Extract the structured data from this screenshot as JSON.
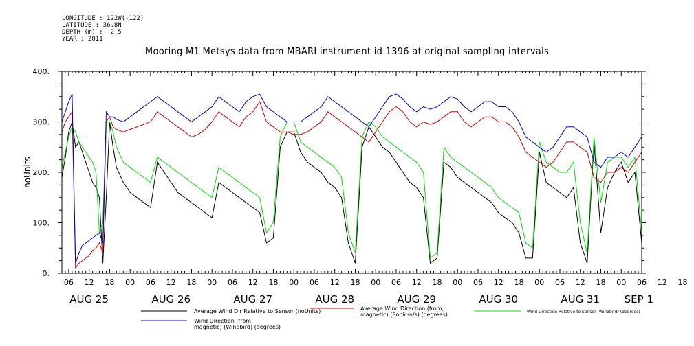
{
  "header": {
    "meta_lines": [
      "LONGITUDE : 122W(-122)",
      "LATITUDE : 36.8N",
      "DEPTH (m) : -2.5",
      "YEAR : 2011"
    ],
    "title": "Mooring M1 Metsys data from MBARI instrument id 1396 at original sampling intervals"
  },
  "chart_data": {
    "type": "line",
    "title": "Mooring M1 Metsys data from MBARI instrument id 1396 at original sampling intervals",
    "ylabel": "noUnits",
    "xlabel": "",
    "ylim": [
      0,
      400
    ],
    "yticks": [
      0,
      100,
      200,
      300,
      400
    ],
    "ytick_labels": [
      "0.",
      "100.",
      "200.",
      "300.",
      "400."
    ],
    "xlim_hours": [
      4,
      174
    ],
    "hour_tick_labels": [
      "06",
      "12",
      "18",
      "00",
      "06",
      "12",
      "18",
      "00",
      "06",
      "12",
      "18",
      "00",
      "06",
      "12",
      "18",
      "00",
      "06",
      "12",
      "18",
      "00",
      "06",
      "12",
      "18",
      "00",
      "06",
      "12",
      "18",
      "00",
      "06",
      "12",
      "18",
      "00"
    ],
    "day_labels": [
      "AUG 25",
      "AUG 26",
      "AUG 27",
      "AUG 28",
      "AUG 29",
      "AUG 30",
      "AUG 31",
      "SEP  1"
    ],
    "grid": false,
    "series": [
      {
        "name": "Average Wind Dir Relative to Sensor (noUnits)",
        "color": "#000000",
        "x": [
          4,
          5,
          6,
          7,
          8,
          9,
          10,
          11,
          12,
          13,
          14,
          15,
          16,
          17,
          18,
          19,
          20,
          22,
          24,
          26,
          28,
          30,
          32,
          34,
          36,
          38,
          40,
          42,
          44,
          46,
          48,
          50,
          52,
          54,
          56,
          58,
          60,
          62,
          64,
          66,
          68,
          70,
          72,
          74,
          76,
          78,
          80,
          82,
          84,
          86,
          88,
          90,
          92,
          94,
          96,
          98,
          100,
          102,
          104,
          106,
          108,
          110,
          112,
          114,
          116,
          118,
          120,
          122,
          124,
          126,
          128,
          130,
          132,
          134,
          136,
          138,
          140,
          142,
          144,
          146,
          148,
          150,
          152,
          154,
          156,
          158,
          160,
          162,
          164,
          166,
          168,
          170,
          172,
          174
        ],
        "values": [
          190,
          230,
          280,
          300,
          250,
          260,
          240,
          220,
          200,
          180,
          170,
          150,
          20,
          150,
          300,
          250,
          210,
          180,
          160,
          150,
          140,
          130,
          220,
          200,
          180,
          160,
          150,
          140,
          130,
          120,
          110,
          180,
          170,
          160,
          150,
          140,
          130,
          120,
          60,
          70,
          250,
          280,
          280,
          240,
          220,
          210,
          200,
          180,
          170,
          150,
          60,
          20,
          250,
          290,
          270,
          250,
          240,
          220,
          200,
          180,
          170,
          150,
          20,
          30,
          220,
          210,
          190,
          180,
          170,
          160,
          150,
          140,
          120,
          110,
          100,
          80,
          30,
          30,
          240,
          180,
          170,
          160,
          150,
          170,
          60,
          20,
          260,
          80,
          170,
          200,
          220,
          180,
          200,
          60
        ]
      },
      {
        "name": "Average Wind Direction (from, magnetic) (Sonic-n/s) (degrees)",
        "color": "#cc0000",
        "x": [
          4,
          5,
          6,
          7,
          8,
          9,
          10,
          11,
          12,
          13,
          14,
          15,
          16,
          17,
          18,
          19,
          20,
          22,
          24,
          26,
          28,
          30,
          32,
          34,
          36,
          38,
          40,
          42,
          44,
          46,
          48,
          50,
          52,
          54,
          56,
          58,
          60,
          62,
          64,
          66,
          68,
          70,
          72,
          74,
          76,
          78,
          80,
          82,
          84,
          86,
          88,
          90,
          92,
          94,
          96,
          98,
          100,
          102,
          104,
          106,
          108,
          110,
          112,
          114,
          116,
          118,
          120,
          122,
          124,
          126,
          128,
          130,
          132,
          134,
          136,
          138,
          140,
          142,
          144,
          146,
          148,
          150,
          152,
          154,
          156,
          158,
          160,
          162,
          164,
          166,
          168,
          170,
          172,
          174
        ],
        "values": [
          280,
          300,
          310,
          320,
          10,
          20,
          25,
          30,
          35,
          45,
          50,
          60,
          40,
          300,
          310,
          290,
          285,
          280,
          285,
          290,
          295,
          300,
          320,
          310,
          300,
          290,
          280,
          270,
          275,
          285,
          300,
          320,
          310,
          300,
          290,
          310,
          320,
          340,
          300,
          290,
          280,
          280,
          275,
          275,
          280,
          290,
          300,
          320,
          310,
          300,
          290,
          280,
          270,
          260,
          280,
          300,
          320,
          330,
          320,
          300,
          290,
          300,
          295,
          300,
          310,
          320,
          320,
          300,
          290,
          300,
          310,
          310,
          300,
          300,
          290,
          270,
          240,
          230,
          220,
          210,
          220,
          240,
          260,
          260,
          250,
          240,
          190,
          180,
          200,
          200,
          210,
          200,
          220,
          240
        ]
      },
      {
        "name": "Wind Direction Relative to Sensor (Windbird) (degrees)",
        "color": "#00dd00",
        "x": [
          4,
          5,
          6,
          7,
          8,
          9,
          10,
          11,
          12,
          13,
          14,
          15,
          16,
          17,
          18,
          19,
          20,
          22,
          24,
          26,
          28,
          30,
          32,
          34,
          36,
          38,
          40,
          42,
          44,
          46,
          48,
          50,
          52,
          54,
          56,
          58,
          60,
          62,
          64,
          66,
          68,
          70,
          72,
          74,
          76,
          78,
          80,
          82,
          84,
          86,
          88,
          90,
          92,
          94,
          96,
          98,
          100,
          102,
          104,
          106,
          108,
          110,
          112,
          114,
          116,
          118,
          120,
          122,
          124,
          126,
          128,
          130,
          132,
          134,
          136,
          138,
          140,
          142,
          144,
          146,
          148,
          150,
          152,
          154,
          156,
          158,
          160,
          162,
          164,
          166,
          168,
          170,
          172,
          174
        ],
        "values": [
          210,
          240,
          270,
          290,
          280,
          260,
          250,
          240,
          230,
          220,
          200,
          80,
          100,
          300,
          300,
          280,
          250,
          220,
          210,
          200,
          190,
          180,
          230,
          220,
          210,
          200,
          190,
          180,
          170,
          160,
          150,
          210,
          200,
          190,
          180,
          170,
          160,
          150,
          80,
          100,
          270,
          300,
          300,
          260,
          250,
          240,
          230,
          220,
          210,
          190,
          80,
          40,
          270,
          300,
          290,
          270,
          260,
          250,
          240,
          230,
          220,
          200,
          30,
          40,
          250,
          230,
          220,
          210,
          200,
          190,
          180,
          170,
          150,
          140,
          130,
          120,
          60,
          50,
          260,
          220,
          210,
          200,
          200,
          220,
          100,
          40,
          270,
          140,
          220,
          230,
          230,
          210,
          230,
          80
        ]
      },
      {
        "name": "Wind Direction (from, magnetic) (Windbird) (degrees)",
        "color": "#0000cc",
        "x": [
          4,
          5,
          6,
          7,
          8,
          9,
          10,
          11,
          12,
          13,
          14,
          15,
          16,
          17,
          18,
          19,
          20,
          22,
          24,
          26,
          28,
          30,
          32,
          34,
          36,
          38,
          40,
          42,
          44,
          46,
          48,
          50,
          52,
          54,
          56,
          58,
          60,
          62,
          64,
          66,
          68,
          70,
          72,
          74,
          76,
          78,
          80,
          82,
          84,
          86,
          88,
          90,
          92,
          94,
          96,
          98,
          100,
          102,
          104,
          106,
          108,
          110,
          112,
          114,
          116,
          118,
          120,
          122,
          124,
          126,
          128,
          130,
          132,
          134,
          136,
          138,
          140,
          142,
          144,
          146,
          148,
          150,
          152,
          154,
          156,
          158,
          160,
          162,
          164,
          166,
          168,
          170,
          172,
          174
        ],
        "values": [
          300,
          320,
          340,
          355,
          20,
          40,
          55,
          60,
          65,
          70,
          75,
          80,
          60,
          320,
          310,
          310,
          305,
          300,
          310,
          320,
          330,
          340,
          350,
          340,
          330,
          320,
          310,
          300,
          310,
          320,
          330,
          350,
          340,
          330,
          320,
          340,
          350,
          355,
          330,
          320,
          310,
          300,
          300,
          300,
          310,
          320,
          330,
          350,
          340,
          330,
          320,
          310,
          300,
          290,
          310,
          330,
          350,
          355,
          345,
          330,
          320,
          330,
          325,
          330,
          340,
          350,
          345,
          330,
          320,
          330,
          340,
          340,
          330,
          330,
          320,
          300,
          270,
          260,
          250,
          240,
          250,
          270,
          290,
          290,
          280,
          270,
          220,
          210,
          230,
          230,
          240,
          230,
          250,
          270
        ]
      }
    ],
    "legend_placement": "bottom"
  },
  "legend": [
    {
      "lines": [
        "Average Wind Dir Relative to Sensor (noUnits)"
      ],
      "color": "#000000"
    },
    {
      "lines": [
        "Average Wind Direction (from,",
        "magnetic) (Sonic-n/s) (degrees)"
      ],
      "color": "#cc0000"
    },
    {
      "lines": [
        "Wind Direction Relative to Sensor (Windbird) (degrees)"
      ],
      "color": "#00dd00"
    },
    {
      "lines": [
        "Wind Direction (from,",
        "magnetic) (Windbird) (degrees)"
      ],
      "color": "#0000cc"
    }
  ]
}
